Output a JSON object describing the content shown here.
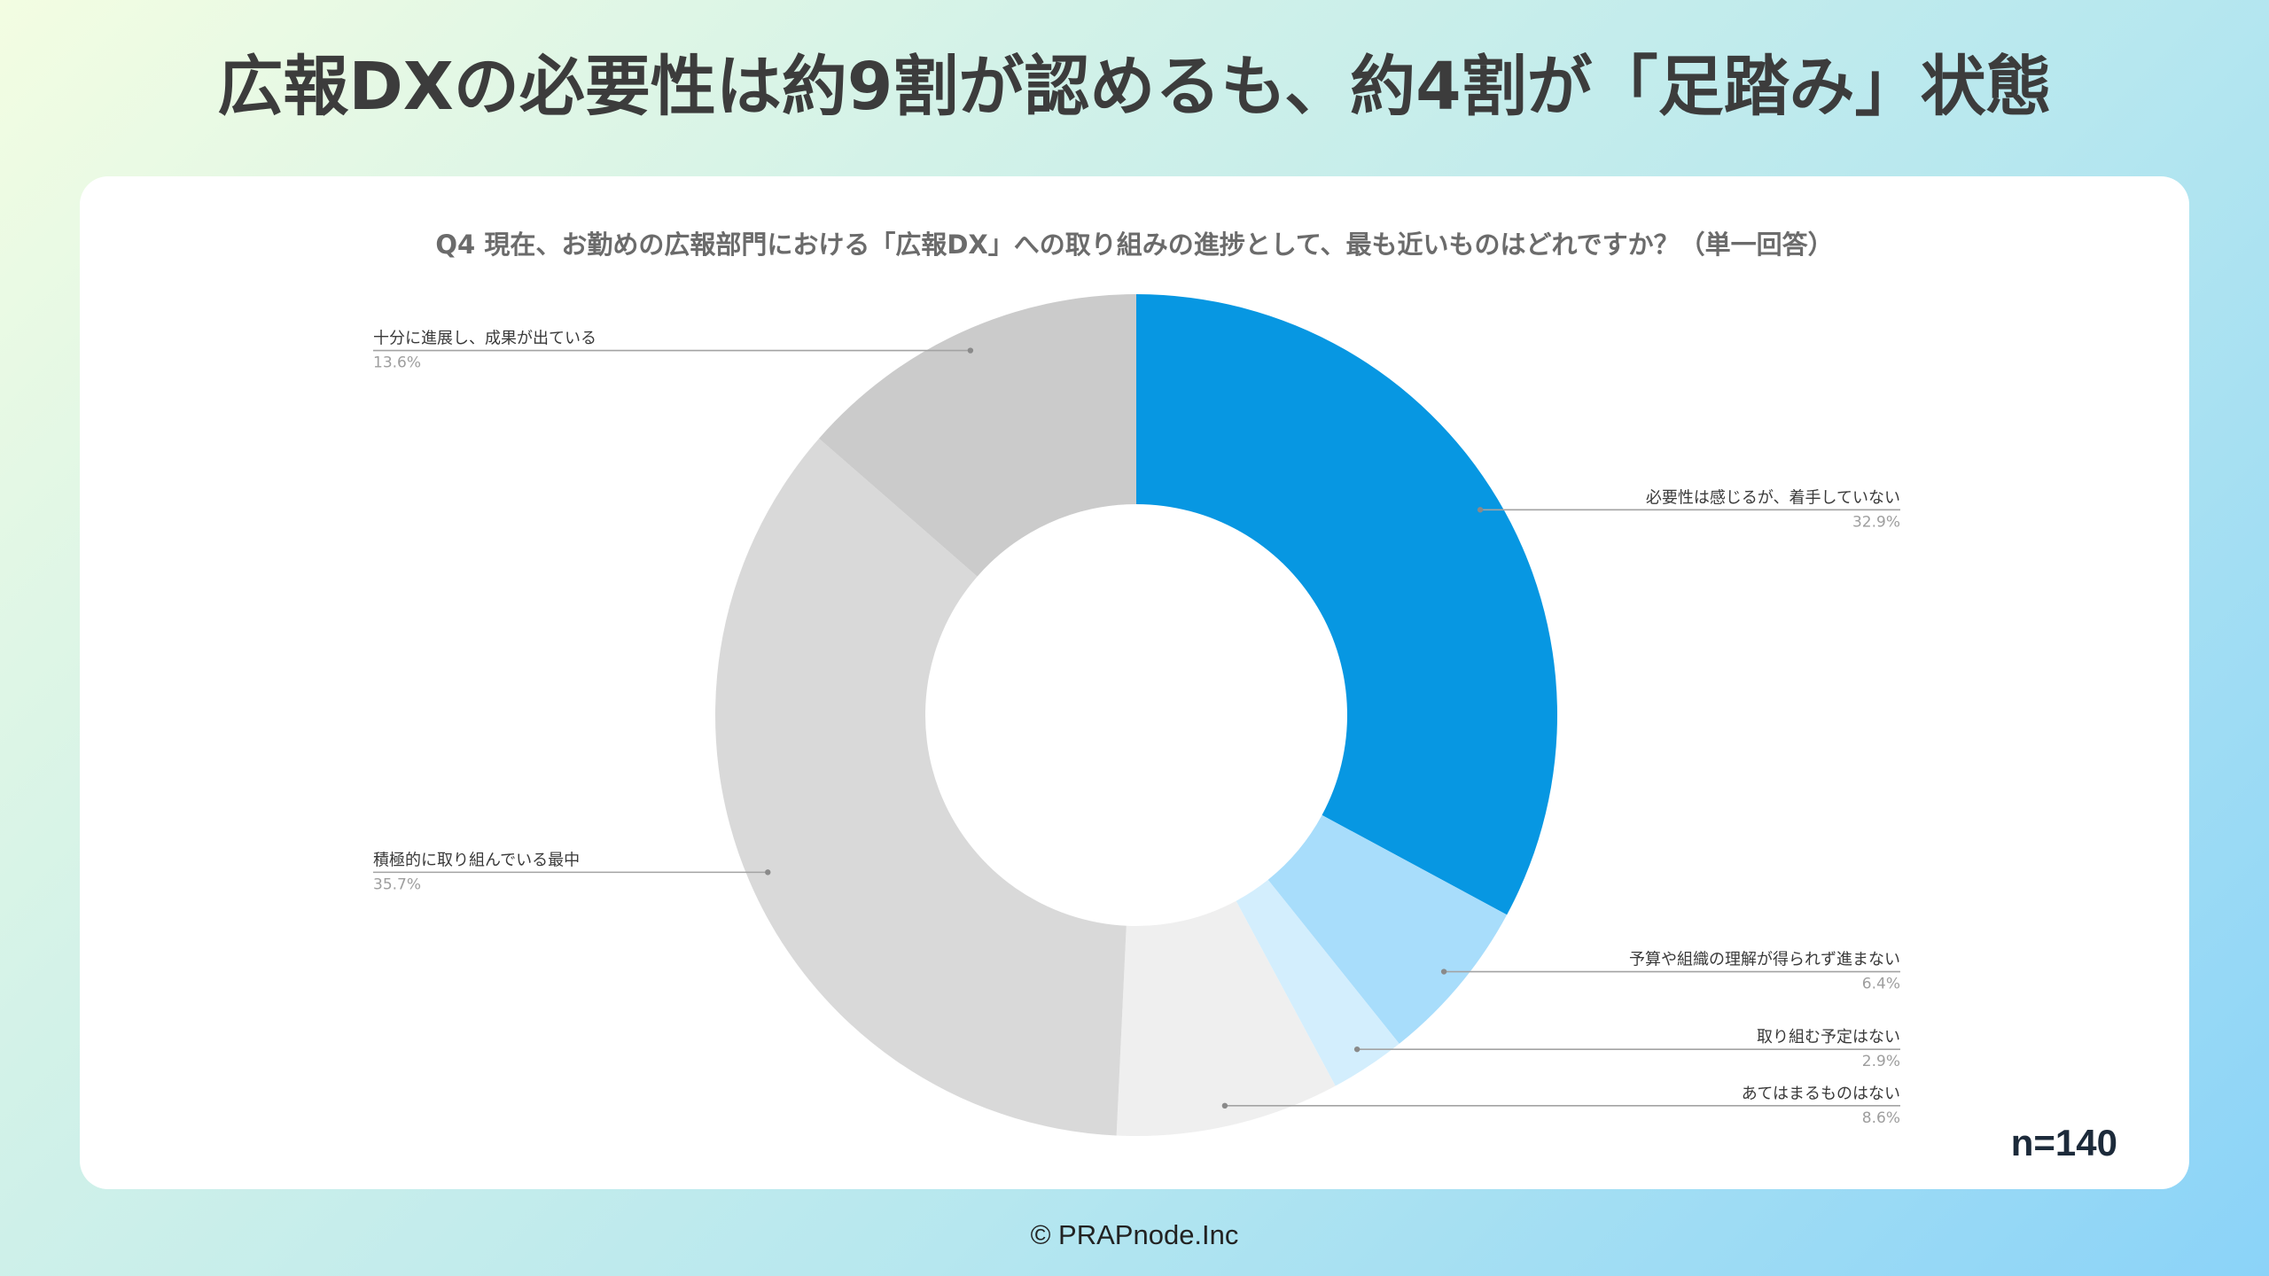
{
  "slide": {
    "headline": "広報DXの必要性は約9割が認めるも、約4割が「足踏み」状態",
    "copyright": "© PRAPnode.Inc"
  },
  "chart_data": {
    "type": "pie",
    "variant": "donut",
    "title": "Q4 現在、お勤めの広報部門における「広報DX」への取り組みの進捗として、最も近いものはどれですか？（単一回答）",
    "categories": [
      "必要性は感じるが、着手していない",
      "予算や組織の理解が得られず進まない",
      "取り組む予定はない",
      "あてはまるものはない",
      "積極的に取り組んでいる最中",
      "十分に進展し、成果が出ている"
    ],
    "values": [
      32.9,
      6.4,
      2.9,
      8.6,
      35.7,
      13.6
    ],
    "value_labels": [
      "32.9%",
      "6.4%",
      "2.9%",
      "8.6%",
      "35.7%",
      "13.6%"
    ],
    "colors": [
      "#0797e2",
      "#a8ddfb",
      "#d3eefd",
      "#efefef",
      "#d9d9d9",
      "#cbcbcb"
    ],
    "note": "n=140"
  }
}
